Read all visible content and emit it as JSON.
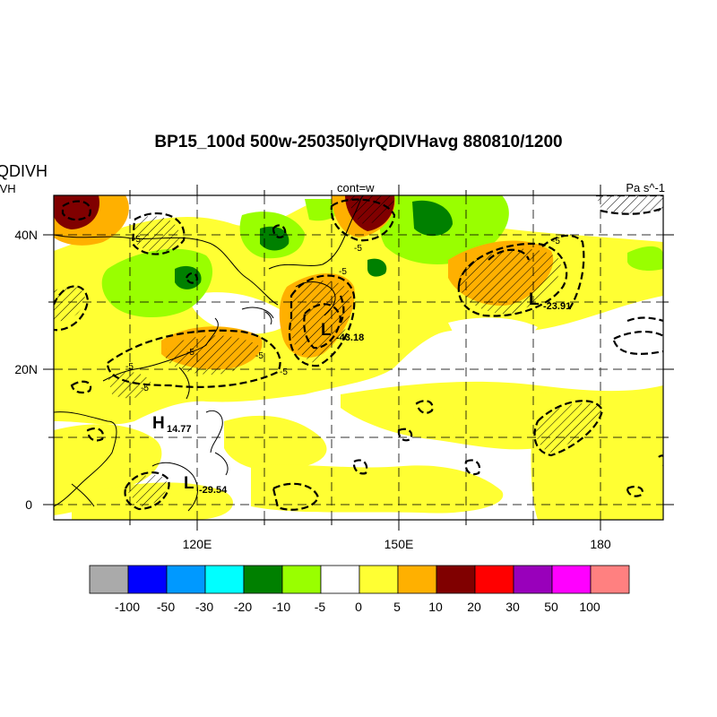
{
  "title": "BP15_100d 500w-250350lyrQDIVHavg  880810/1200",
  "left_title": "QDIVH",
  "left_subtitle": "IVH",
  "center_string": "cont=w",
  "right_string": "Pa s^-1",
  "axes": {
    "lat_labels": [
      "40N",
      "20N",
      "0"
    ],
    "lon_labels": [
      "120E",
      "150E",
      "180"
    ]
  },
  "extrema": [
    {
      "type": "H",
      "value": "14.77"
    },
    {
      "type": "L",
      "value": "-29.54"
    },
    {
      "type": "L",
      "value": "-43.18"
    },
    {
      "type": "L",
      "value": "-23.91"
    }
  ],
  "contour_labels": [
    "-5",
    "-5",
    "-5",
    "-5",
    "-5",
    "-5",
    "-5",
    "-5",
    "-5"
  ],
  "colorbar": {
    "labels": [
      "-100",
      "-50",
      "-30",
      "-20",
      "-10",
      "-5",
      "0",
      "5",
      "10",
      "20",
      "30",
      "50",
      "100"
    ],
    "colors": [
      "#aaaaaa",
      "#0000ff",
      "#0099ff",
      "#00ffff",
      "#008000",
      "#99ff00",
      "#ffffff",
      "#ffff33",
      "#ffb000",
      "#800000",
      "#ff0000",
      "#9900bb",
      "#ff00ff",
      "#ff8080"
    ]
  }
}
